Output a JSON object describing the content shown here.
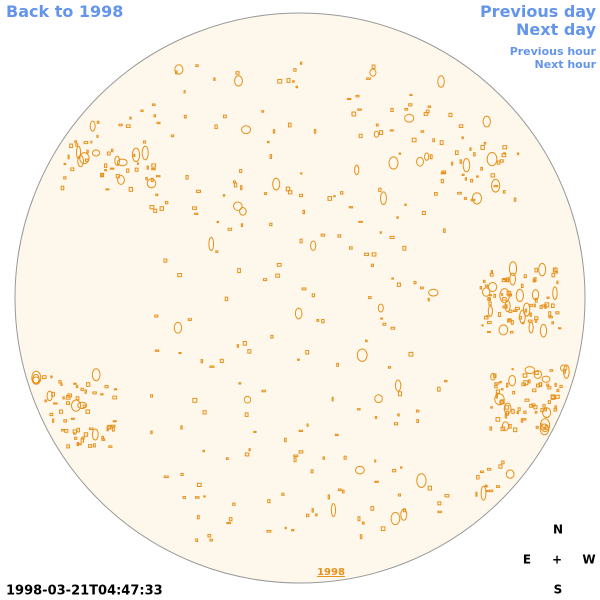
{
  "nav": {
    "back": "Back to 1998",
    "previous_day": "Previous day",
    "next_day": "Next day",
    "previous_hour": "Previous hour",
    "next_hour": "Next hour"
  },
  "image": {
    "year_link": "1998",
    "timestamp": "1998-03-21T04:47:33"
  },
  "compass": {
    "north": "N",
    "east": "E",
    "center": "+",
    "west": "W",
    "south": "S"
  }
}
